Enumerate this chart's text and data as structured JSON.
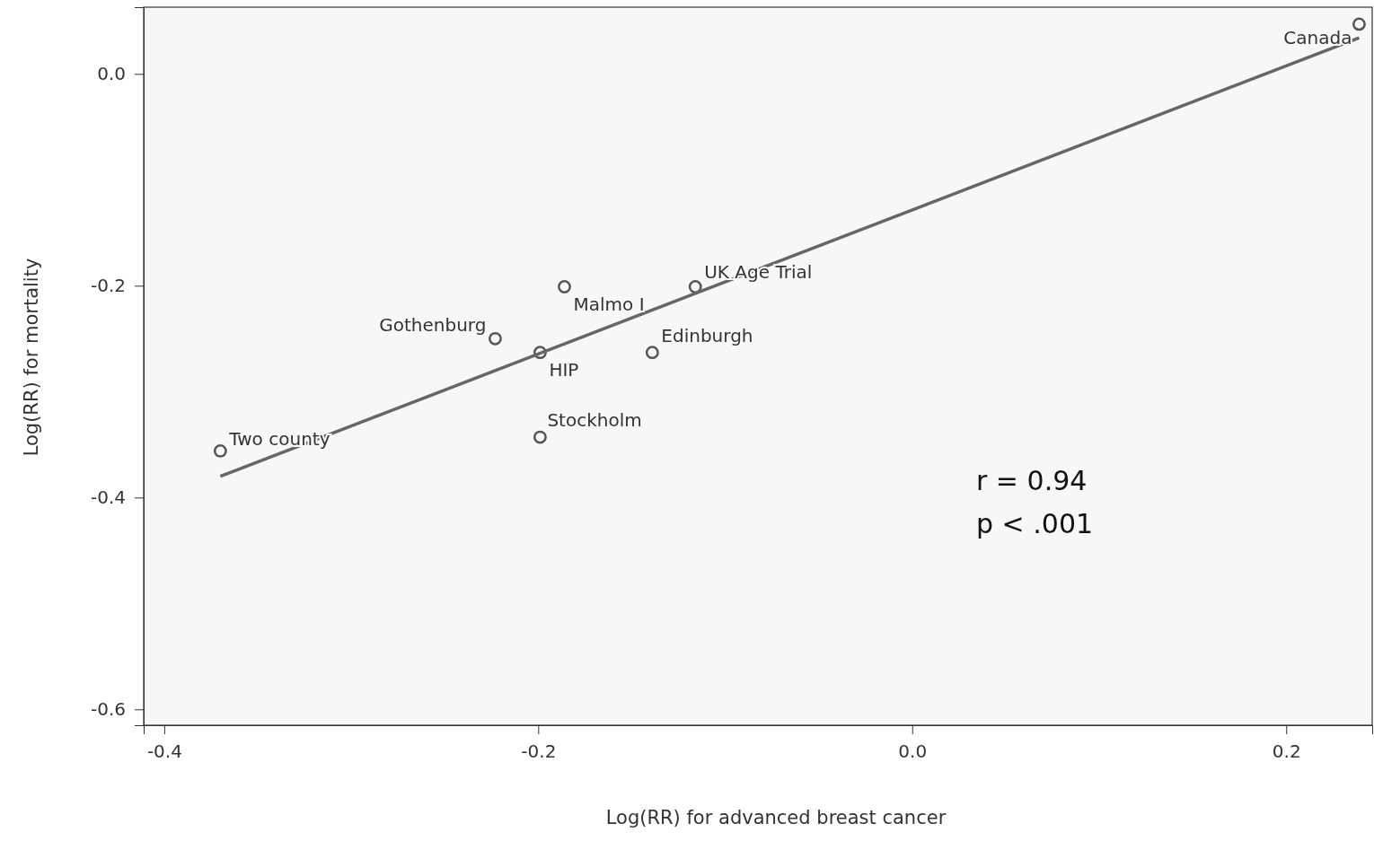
{
  "chart_data": {
    "type": "scatter",
    "xlabel": "Log(RR) for advanced breast cancer",
    "ylabel": "Log(RR) for mortality",
    "xlim": [
      -0.411,
      0.246
    ],
    "ylim": [
      -0.615,
      0.063
    ],
    "xticks": [
      -0.4,
      -0.2,
      {
        "value": 0,
        "label": "0.0"
      },
      0.2
    ],
    "yticks": [
      {
        "value": 0,
        "label": "0.0"
      },
      -0.2,
      -0.4,
      -0.6
    ],
    "grid": false,
    "series": [
      {
        "marker": "circle",
        "color": "#555555",
        "x": [
          0.239,
          -0.116,
          -0.186,
          -0.223,
          -0.199,
          -0.139,
          -0.199,
          -0.37
        ],
        "values": [
          0.047,
          -0.201,
          -0.201,
          -0.25,
          -0.263,
          -0.263,
          -0.343,
          -0.356
        ]
      },
      {
        "type": "line",
        "marker": "none",
        "color": "#666666",
        "line_style": "solid",
        "x": [
          -0.37,
          0.239
        ],
        "values": [
          -0.38,
          0.034
        ]
      }
    ],
    "annotations": [
      {
        "text": "Canada",
        "x": 0.239,
        "y": 0.047
      },
      {
        "text": "UK Age Trial",
        "x": -0.116,
        "y": -0.201
      },
      {
        "text": "Malmo I",
        "x": -0.186,
        "y": -0.201
      },
      {
        "text": "Gothenburg",
        "x": -0.223,
        "y": -0.25
      },
      {
        "text": "HIP",
        "x": -0.199,
        "y": -0.263
      },
      {
        "text": "Edinburgh",
        "x": -0.139,
        "y": -0.263
      },
      {
        "text": "Stockholm",
        "x": -0.199,
        "y": -0.343
      },
      {
        "text": "Two county",
        "x": -0.37,
        "y": -0.356
      },
      "r = 0.94",
      "p < .001"
    ]
  }
}
